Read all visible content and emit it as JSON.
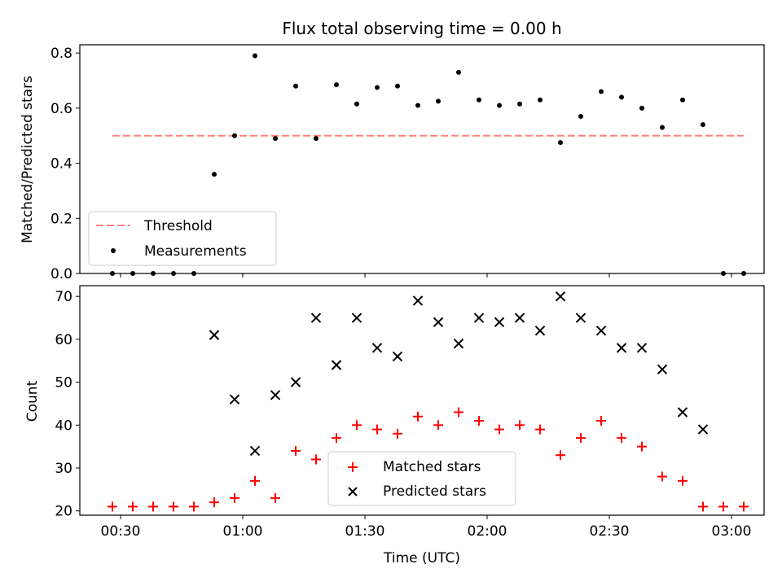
{
  "chart_data": [
    {
      "type": "scatter",
      "title": "Flux total observing time = 0.00 h",
      "ylabel": "Matched/Predicted stars",
      "ylim": [
        0,
        0.83
      ],
      "yticks": [
        "0.0",
        "0.2",
        "0.4",
        "0.6",
        "0.8"
      ],
      "grid": false,
      "legend_position": "lower-left",
      "threshold": {
        "label": "Threshold",
        "y": 0.5,
        "x_start": "00:28",
        "x_end": "03:03",
        "color": "#ff7f7f"
      },
      "series": [
        {
          "name": "Measurements",
          "color": "#000000",
          "x": [
            "00:28",
            "00:33",
            "00:38",
            "00:43",
            "00:48",
            "00:53",
            "00:58",
            "01:03",
            "01:08",
            "01:13",
            "01:18",
            "01:23",
            "01:28",
            "01:33",
            "01:38",
            "01:43",
            "01:48",
            "01:53",
            "01:58",
            "02:03",
            "02:08",
            "02:13",
            "02:18",
            "02:23",
            "02:28",
            "02:33",
            "02:38",
            "02:43",
            "02:48",
            "02:53",
            "02:58",
            "03:03"
          ],
          "y": [
            0,
            0,
            0,
            0,
            0,
            0.36,
            0.5,
            0.79,
            0.49,
            0.68,
            0.49,
            0.685,
            0.615,
            0.675,
            0.68,
            0.61,
            0.625,
            0.73,
            0.63,
            0.61,
            0.615,
            0.63,
            0.475,
            0.57,
            0.66,
            0.64,
            0.6,
            0.53,
            0.63,
            0.54,
            0,
            0
          ]
        }
      ]
    },
    {
      "type": "scatter",
      "xlabel": "Time (UTC)",
      "ylabel": "Count",
      "ylim": [
        19,
        72.5
      ],
      "yticks": [
        "20",
        "30",
        "40",
        "50",
        "60",
        "70"
      ],
      "xticks": [
        "00:30",
        "01:00",
        "01:30",
        "02:00",
        "02:30",
        "03:00"
      ],
      "grid": false,
      "legend_position": "lower-center",
      "series": [
        {
          "name": "Matched stars",
          "marker": "+",
          "color": "#ff0000",
          "x": [
            "00:28",
            "00:33",
            "00:38",
            "00:43",
            "00:48",
            "00:53",
            "00:58",
            "01:03",
            "01:08",
            "01:13",
            "01:18",
            "01:23",
            "01:28",
            "01:33",
            "01:38",
            "01:43",
            "01:48",
            "01:53",
            "01:58",
            "02:03",
            "02:08",
            "02:13",
            "02:18",
            "02:23",
            "02:28",
            "02:33",
            "02:38",
            "02:43",
            "02:48",
            "02:53",
            "02:58",
            "03:03"
          ],
          "y": [
            21,
            21,
            21,
            21,
            21,
            22,
            23,
            27,
            23,
            34,
            32,
            37,
            40,
            39,
            38,
            42,
            40,
            43,
            41,
            39,
            40,
            39,
            33,
            37,
            41,
            37,
            35,
            28,
            27,
            21,
            21,
            21
          ]
        },
        {
          "name": "Predicted stars",
          "marker": "x",
          "color": "#000000",
          "x": [
            "00:53",
            "00:58",
            "01:03",
            "01:08",
            "01:13",
            "01:18",
            "01:23",
            "01:28",
            "01:33",
            "01:38",
            "01:43",
            "01:48",
            "01:53",
            "01:58",
            "02:03",
            "02:08",
            "02:13",
            "02:18",
            "02:23",
            "02:28",
            "02:33",
            "02:38",
            "02:43",
            "02:48",
            "02:53"
          ],
          "y": [
            61,
            46,
            34,
            47,
            50,
            65,
            54,
            65,
            58,
            56,
            69,
            64,
            59,
            65,
            64,
            65,
            62,
            70,
            65,
            62,
            58,
            58,
            53,
            43,
            39
          ]
        }
      ]
    }
  ]
}
